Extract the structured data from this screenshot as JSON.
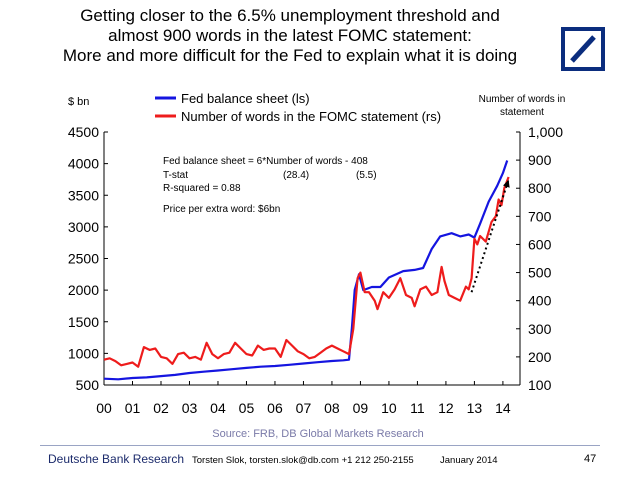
{
  "page": {
    "title_lines": [
      "Getting closer to the 6.5% unemployment threshold and",
      "almost 900 words in the latest FOMC statement:",
      "More and more difficult for the Fed to explain what it is doing"
    ],
    "source": "Source: FRB, DB Global Markets Research",
    "footer_org": "Deutsche Bank Research",
    "footer_contact": "Torsten Slok, torsten.slok@db.com  +1 212 250-2155",
    "footer_date": "January 2014",
    "page_number": "47",
    "logo_color": "#0b2d7e"
  },
  "chart_data": {
    "type": "line",
    "title": "",
    "ylabel_left": "$ bn",
    "ylabel_right_lines": [
      "Number of words in",
      "statement"
    ],
    "x_ticks": [
      "00",
      "01",
      "02",
      "03",
      "04",
      "05",
      "06",
      "07",
      "08",
      "09",
      "10",
      "11",
      "12",
      "13",
      "14"
    ],
    "xlim": [
      2000,
      2014.6
    ],
    "ylim_left": [
      500,
      4500
    ],
    "yticks_left": [
      "500",
      "1000",
      "1500",
      "2000",
      "2500",
      "3000",
      "3500",
      "4000",
      "4500"
    ],
    "ylim_right": [
      100,
      1000
    ],
    "yticks_right": [
      "100",
      "200",
      "300",
      "400",
      "500",
      "600",
      "700",
      "800",
      "900",
      "1,000"
    ],
    "legend": [
      "Fed balance sheet (ls)",
      "Number of words in the FOMC statement (rs)"
    ],
    "annotations": [
      "Fed balance sheet = 6*Number of words - 408",
      "T-stat",
      "(28.4)",
      "(5.5)",
      "R-squared = 0.88",
      "Price per extra word: $6bn"
    ],
    "arrow": {
      "from": [
        12.9,
        430
      ],
      "to": [
        14.2,
        830
      ]
    },
    "series": [
      {
        "name": "Fed balance sheet (ls)",
        "axis": "left",
        "color": "#1515e0",
        "points": [
          [
            2000.0,
            600
          ],
          [
            2000.5,
            590
          ],
          [
            2001.0,
            610
          ],
          [
            2001.5,
            620
          ],
          [
            2002.0,
            640
          ],
          [
            2002.5,
            660
          ],
          [
            2003.0,
            690
          ],
          [
            2003.5,
            710
          ],
          [
            2004.0,
            730
          ],
          [
            2004.5,
            750
          ],
          [
            2005.0,
            770
          ],
          [
            2005.5,
            790
          ],
          [
            2006.0,
            800
          ],
          [
            2006.5,
            820
          ],
          [
            2007.0,
            840
          ],
          [
            2007.5,
            860
          ],
          [
            2008.0,
            880
          ],
          [
            2008.4,
            890
          ],
          [
            2008.6,
            900
          ],
          [
            2008.7,
            1400
          ],
          [
            2008.8,
            2000
          ],
          [
            2008.95,
            2250
          ],
          [
            2009.1,
            2000
          ],
          [
            2009.4,
            2050
          ],
          [
            2009.7,
            2050
          ],
          [
            2010.0,
            2200
          ],
          [
            2010.5,
            2300
          ],
          [
            2010.9,
            2320
          ],
          [
            2011.2,
            2350
          ],
          [
            2011.5,
            2650
          ],
          [
            2011.8,
            2850
          ],
          [
            2012.2,
            2900
          ],
          [
            2012.5,
            2850
          ],
          [
            2012.8,
            2880
          ],
          [
            2013.0,
            2830
          ],
          [
            2013.2,
            3050
          ],
          [
            2013.5,
            3400
          ],
          [
            2013.8,
            3650
          ],
          [
            2014.0,
            3850
          ],
          [
            2014.15,
            4050
          ]
        ]
      },
      {
        "name": "Number of words in the FOMC statement (rs)",
        "axis": "right",
        "color": "#ee1c1c",
        "points": [
          [
            2000.0,
            190
          ],
          [
            2000.2,
            195
          ],
          [
            2000.4,
            185
          ],
          [
            2000.6,
            170
          ],
          [
            2000.8,
            175
          ],
          [
            2001.0,
            180
          ],
          [
            2001.2,
            165
          ],
          [
            2001.4,
            235
          ],
          [
            2001.6,
            225
          ],
          [
            2001.8,
            230
          ],
          [
            2002.0,
            200
          ],
          [
            2002.2,
            195
          ],
          [
            2002.4,
            175
          ],
          [
            2002.6,
            210
          ],
          [
            2002.8,
            215
          ],
          [
            2003.0,
            195
          ],
          [
            2003.2,
            200
          ],
          [
            2003.4,
            190
          ],
          [
            2003.6,
            250
          ],
          [
            2003.8,
            210
          ],
          [
            2004.0,
            195
          ],
          [
            2004.2,
            210
          ],
          [
            2004.4,
            215
          ],
          [
            2004.6,
            250
          ],
          [
            2004.8,
            230
          ],
          [
            2005.0,
            210
          ],
          [
            2005.2,
            205
          ],
          [
            2005.4,
            240
          ],
          [
            2005.6,
            225
          ],
          [
            2005.8,
            230
          ],
          [
            2006.0,
            230
          ],
          [
            2006.2,
            200
          ],
          [
            2006.4,
            260
          ],
          [
            2006.6,
            240
          ],
          [
            2006.8,
            220
          ],
          [
            2007.0,
            210
          ],
          [
            2007.2,
            195
          ],
          [
            2007.4,
            200
          ],
          [
            2007.6,
            215
          ],
          [
            2007.8,
            230
          ],
          [
            2008.0,
            240
          ],
          [
            2008.2,
            230
          ],
          [
            2008.4,
            220
          ],
          [
            2008.6,
            210
          ],
          [
            2008.75,
            300
          ],
          [
            2008.9,
            480
          ],
          [
            2009.0,
            500
          ],
          [
            2009.15,
            430
          ],
          [
            2009.3,
            430
          ],
          [
            2009.5,
            400
          ],
          [
            2009.6,
            370
          ],
          [
            2009.8,
            430
          ],
          [
            2010.0,
            410
          ],
          [
            2010.2,
            440
          ],
          [
            2010.4,
            480
          ],
          [
            2010.6,
            420
          ],
          [
            2010.8,
            410
          ],
          [
            2010.9,
            380
          ],
          [
            2011.1,
            440
          ],
          [
            2011.3,
            450
          ],
          [
            2011.5,
            420
          ],
          [
            2011.7,
            430
          ],
          [
            2011.85,
            520
          ],
          [
            2011.95,
            470
          ],
          [
            2012.1,
            420
          ],
          [
            2012.3,
            410
          ],
          [
            2012.5,
            400
          ],
          [
            2012.7,
            450
          ],
          [
            2012.8,
            440
          ],
          [
            2012.9,
            480
          ],
          [
            2013.0,
            620
          ],
          [
            2013.1,
            600
          ],
          [
            2013.2,
            630
          ],
          [
            2013.4,
            610
          ],
          [
            2013.6,
            680
          ],
          [
            2013.75,
            700
          ],
          [
            2013.85,
            760
          ],
          [
            2013.95,
            740
          ],
          [
            2014.05,
            800
          ],
          [
            2014.2,
            840
          ]
        ]
      }
    ]
  }
}
